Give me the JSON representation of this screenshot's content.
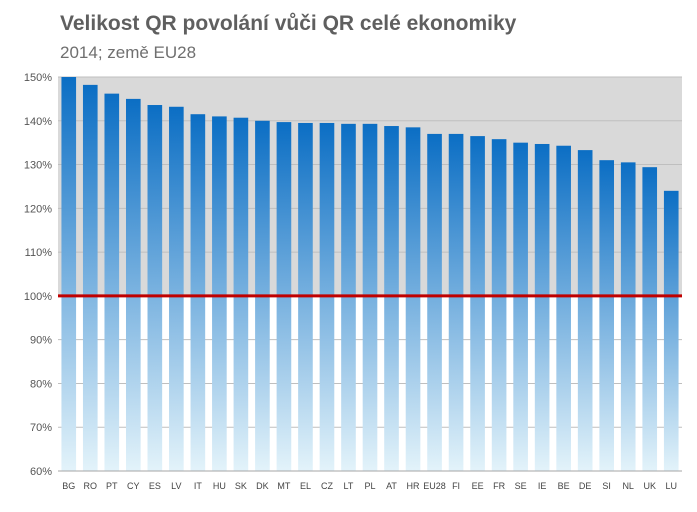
{
  "chart_data": {
    "type": "bar",
    "title": "Velikost QR povolání vůči QR celé ekonomiky",
    "subtitle": "2014; země EU28",
    "categories": [
      "BG",
      "RO",
      "PT",
      "CY",
      "ES",
      "LV",
      "IT",
      "HU",
      "SK",
      "DK",
      "MT",
      "EL",
      "CZ",
      "LT",
      "PL",
      "AT",
      "HR",
      "EU28",
      "FI",
      "EE",
      "FR",
      "SE",
      "IE",
      "BE",
      "DE",
      "SI",
      "NL",
      "UK",
      "LU"
    ],
    "values": [
      150.0,
      148.2,
      146.2,
      145.0,
      143.6,
      143.2,
      141.5,
      141.0,
      140.7,
      140.0,
      139.7,
      139.5,
      139.5,
      139.3,
      139.3,
      138.8,
      138.5,
      137.0,
      137.0,
      136.5,
      135.8,
      135.0,
      134.7,
      134.3,
      133.3,
      131.0,
      130.5,
      129.4,
      124.0
    ],
    "ylim": [
      60,
      150
    ],
    "yticks": [
      "60%",
      "70%",
      "80%",
      "90%",
      "100%",
      "110%",
      "120%",
      "130%",
      "140%",
      "150%"
    ],
    "ytick_values": [
      60,
      70,
      80,
      90,
      100,
      110,
      120,
      130,
      140,
      150
    ],
    "reference_line": 100,
    "colors": {
      "bar_top": "#0b6ec4",
      "bar_bottom": "#e3f3fa",
      "reference_line": "#c00000",
      "upper_band": "#d9d9d9",
      "gridline": "#bfbfbf",
      "axis_text": "#555555"
    },
    "grid": true
  }
}
